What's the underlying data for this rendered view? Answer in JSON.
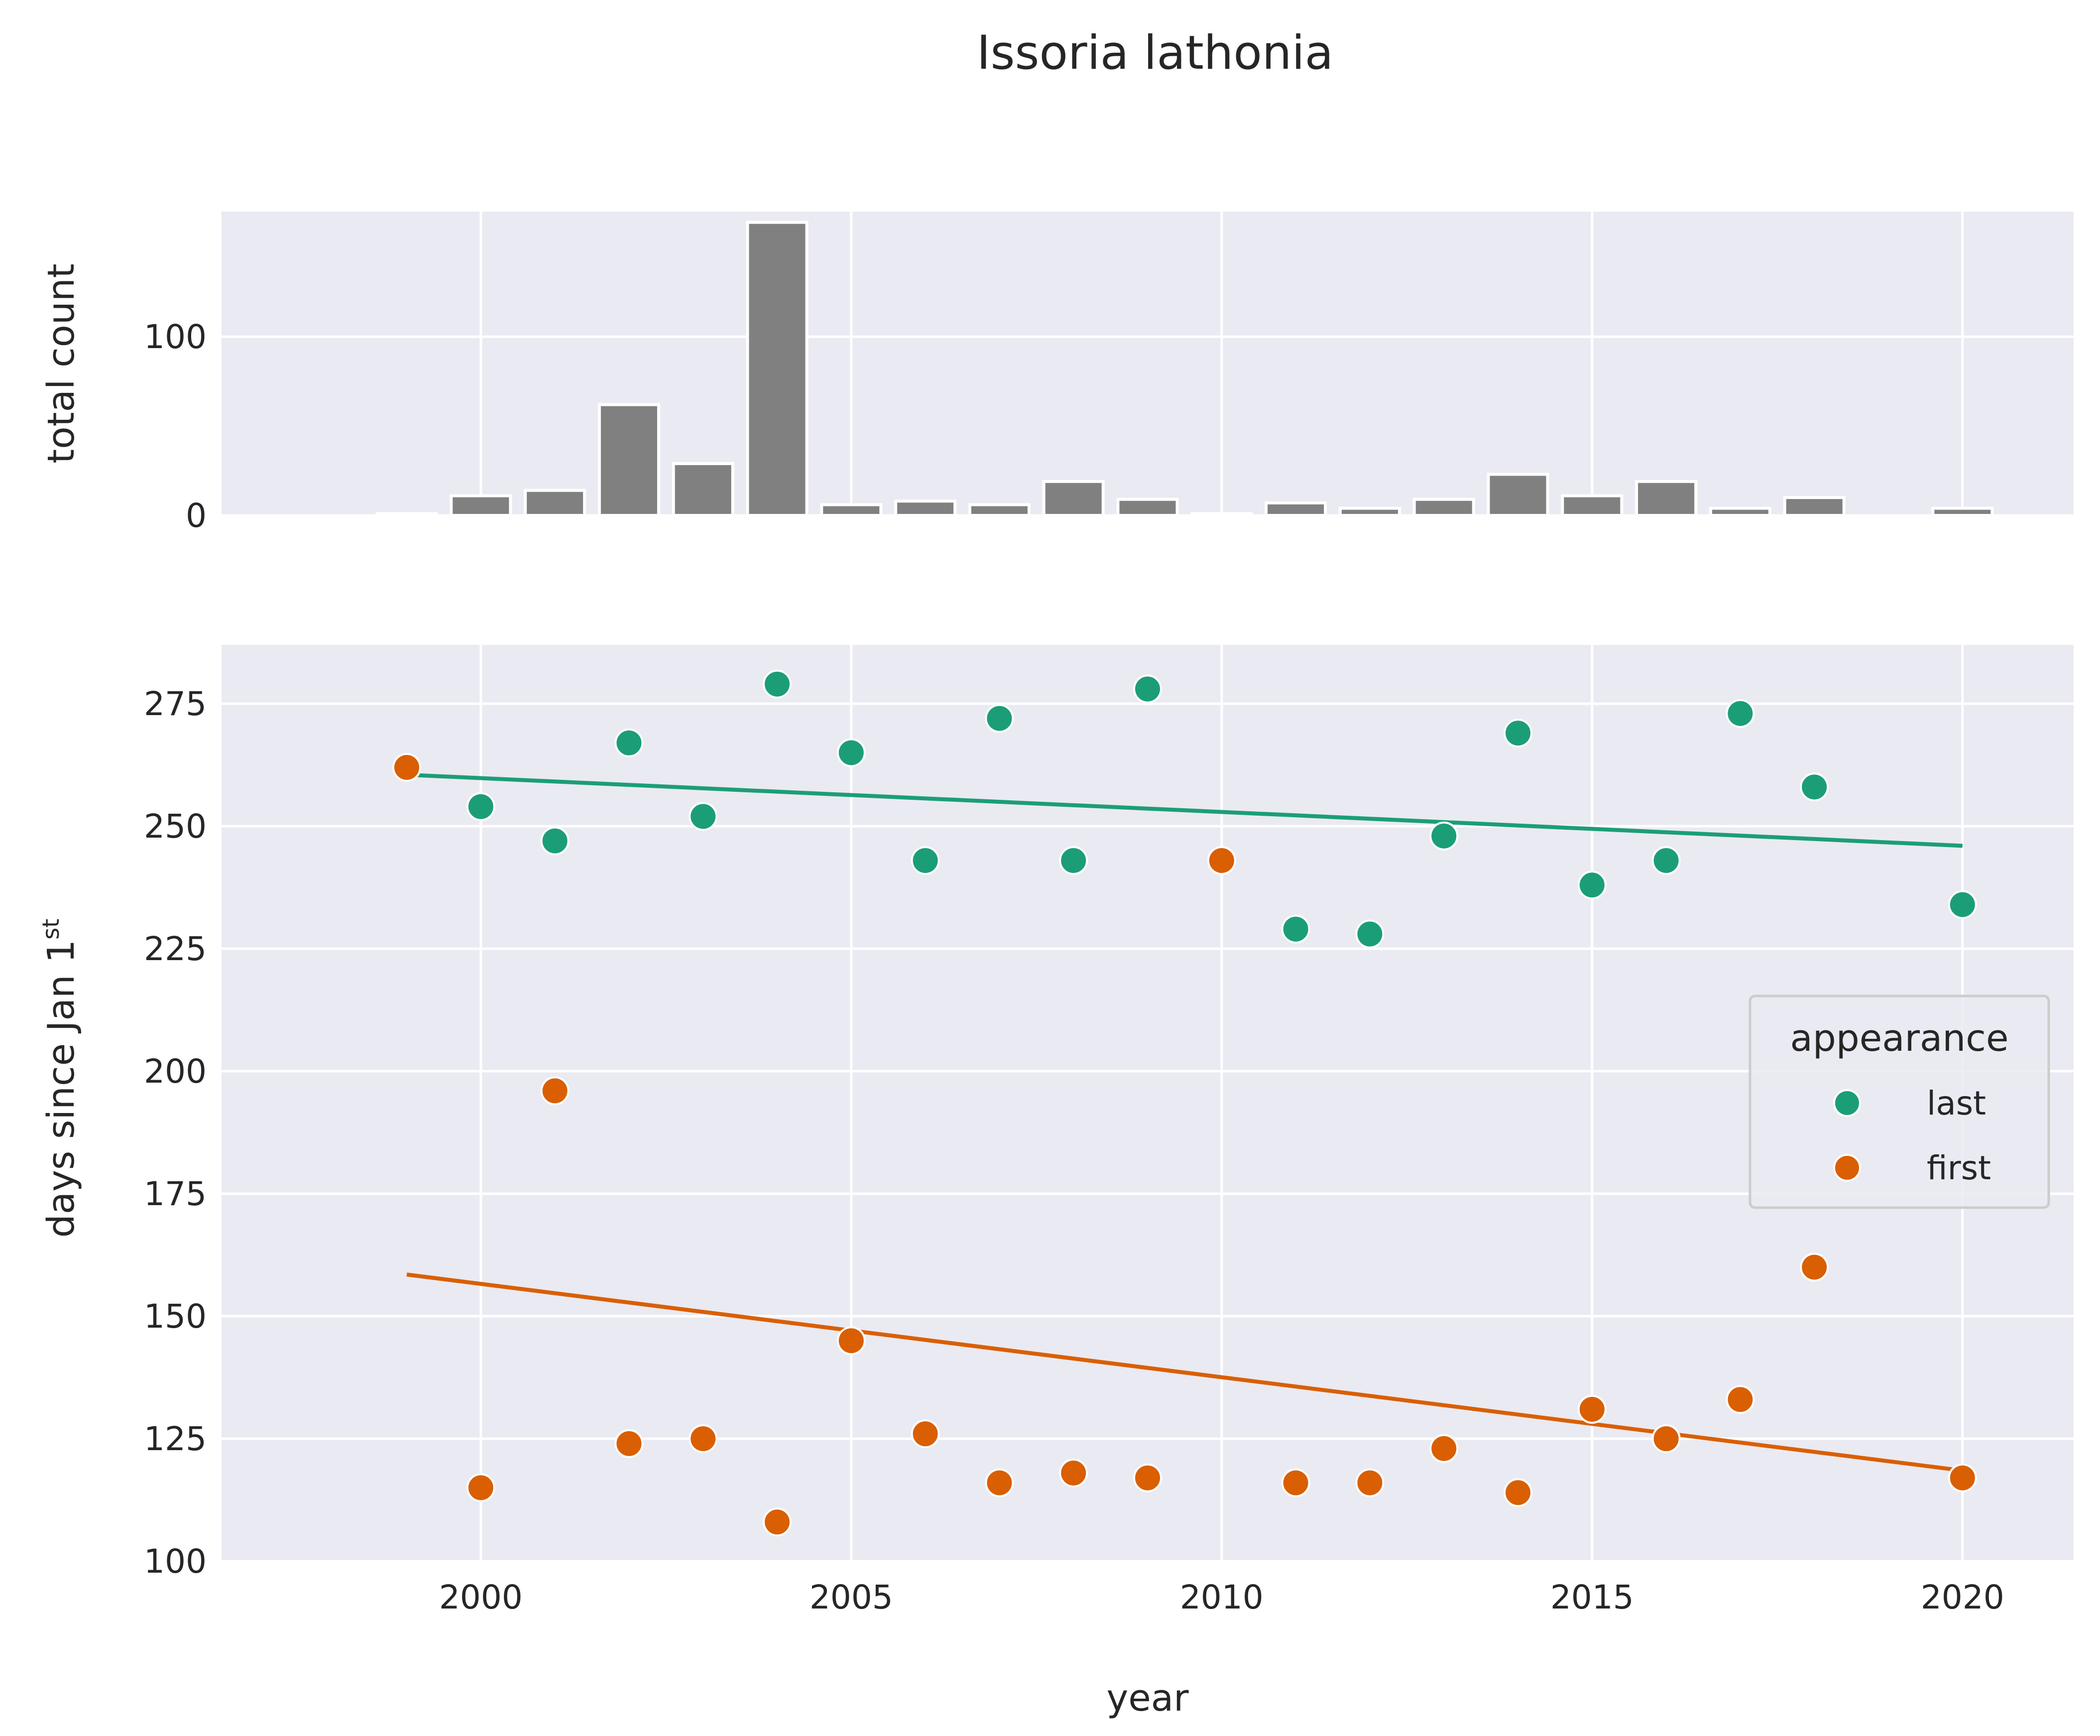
{
  "chart_data": {
    "type": "composite",
    "title": "Issoria lathonia",
    "panels": {
      "top": {
        "type": "bar",
        "ylabel": "total count",
        "x": [
          1998,
          1999,
          2000,
          2001,
          2002,
          2003,
          2004,
          2005,
          2006,
          2007,
          2008,
          2009,
          2010,
          2011,
          2012,
          2013,
          2014,
          2015,
          2016,
          2017,
          2018,
          2020
        ],
        "values": [
          0,
          1,
          11,
          14,
          62,
          29,
          164,
          6,
          8,
          6,
          19,
          9,
          1,
          7,
          4,
          9,
          23,
          11,
          19,
          4,
          10,
          4
        ],
        "ylim": [
          0,
          170
        ],
        "yticks": [
          0,
          100
        ],
        "color": "#808080"
      },
      "bottom": {
        "type": "scatter",
        "xlabel": "year",
        "ylabel_main": "days since Jan 1",
        "ylabel_sup": "st",
        "xlim": [
          1996.5,
          2021.5
        ],
        "ylim": [
          100,
          287
        ],
        "xticks": [
          "2000",
          "2005",
          "2010",
          "2015",
          "2020"
        ],
        "yticks": [
          "100",
          "125",
          "150",
          "175",
          "200",
          "225",
          "250",
          "275"
        ],
        "legend_title": "appearance",
        "legend_position": "right",
        "series": [
          {
            "name": "last",
            "color": "#1b9e77",
            "x": [
              1999,
              2000,
              2001,
              2002,
              2003,
              2004,
              2005,
              2006,
              2007,
              2008,
              2009,
              2010,
              2011,
              2012,
              2013,
              2014,
              2015,
              2016,
              2017,
              2018,
              2020
            ],
            "y": [
              262,
              254,
              247,
              267,
              252,
              279,
              265,
              243,
              272,
              243,
              278,
              243,
              229,
              228,
              248,
              269,
              238,
              243,
              273,
              258,
              234
            ],
            "trend": [
              [
                1999,
                260.5
              ],
              [
                2020,
                246.0
              ]
            ]
          },
          {
            "name": "first",
            "color": "#d95f02",
            "x": [
              1999,
              2000,
              2001,
              2002,
              2003,
              2004,
              2005,
              2006,
              2007,
              2008,
              2009,
              2010,
              2011,
              2012,
              2013,
              2014,
              2015,
              2016,
              2017,
              2018,
              2020
            ],
            "y": [
              262,
              115,
              196,
              124,
              125,
              108,
              145,
              126,
              116,
              118,
              117,
              243,
              116,
              116,
              123,
              114,
              131,
              125,
              133,
              160,
              117
            ],
            "trend": [
              [
                1999,
                158.5
              ],
              [
                2020,
                118.5
              ]
            ]
          }
        ]
      }
    }
  }
}
